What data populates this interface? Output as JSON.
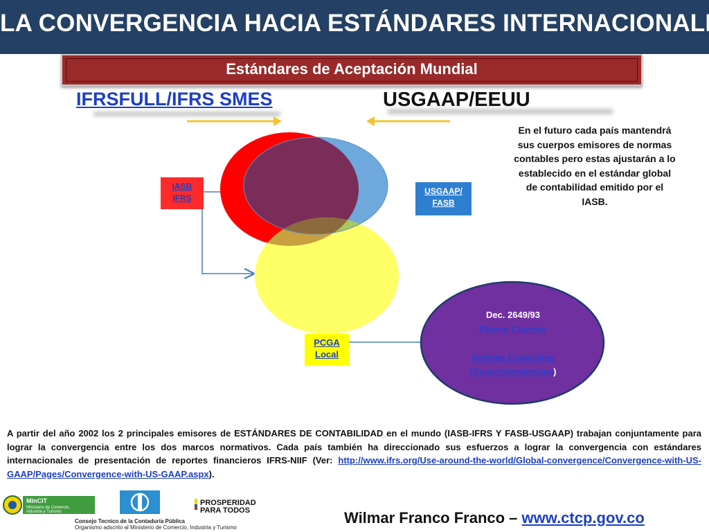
{
  "title": "LA CONVERGENCIA HACIA ESTÁNDARES INTERNACIONALES",
  "subtitle": "Estándares de Aceptación Mundial",
  "left_heading": "IFRSFULL/IFRS SMES",
  "right_heading": "USGAAP/EEUU",
  "iasb_label": {
    "line1": "IASB",
    "line2": "IFRS"
  },
  "fasb_label": {
    "line1": "USGAAP/",
    "line2": "FASB"
  },
  "pcga_label": {
    "line1": "PCGA",
    "line2": "Local"
  },
  "future_text": "En el futuro cada país mantendrá sus cuerpos emisores de normas contables pero estas ajustarán a lo establecido en el estándar global de contabilidad emitido por el IASB.",
  "decree": {
    "line1": "Dec. 2649/93",
    "line2": "Planes Cuentas",
    "line3": "Normas Especiales",
    "line4": "(Superintendencias",
    "line4_suffix": ")"
  },
  "body_text": "A partir del año 2002 los 2 principales emisores de ESTÁNDARES DE CONTABILIDAD en el mundo (IASB-IFRS Y FASB-USGAAP) trabajan conjuntamente para lograr la convergencia entre los dos marcos normativos. Cada país también ha direccionado sus esfuerzos a lograr la convergencia con estándares internacionales de presentación de reportes financieros IFRS-NIIF (Ver: ",
  "body_link": "http://www.ifrs.org/Use-around-the-world/Global-convergence/Convergence-with-US-GAAP/Pages/Convergence-with-US-GAAP.aspx",
  "body_end": ").",
  "footer": {
    "author": "Wilmar Franco Franco – ",
    "url": "www.ctcp.gov.co"
  },
  "logos": {
    "mincit_name": "MinCIT",
    "mincit_sub1": "Ministerio de Comercio,",
    "mincit_sub2": "Industria y Turismo",
    "prosperidad_line1": "PROSPERIDAD",
    "prosperidad_line2": "PARA TODOS",
    "council_line1": "Consejo Tecnico de la Contaduría Pública",
    "council_line2": "Organismo adscrito al Ministerio de Comercio, Industria y Turismo"
  },
  "colors": {
    "title_bg": "#244064",
    "subtitle_bg": "#9a2a2a",
    "ifrs_circle": "#ff0000",
    "usgaap_circle": "#6fa8dc",
    "pcga_circle": "#ffff66",
    "overlap": "#7b2d5a",
    "decree_ellipse": "#7030a0",
    "arrow_yellow": "#f4c430",
    "connector_blue": "#4a7fc1"
  },
  "icons": {
    "arrow_right": "arrow-right-icon",
    "arrow_left": "arrow-left-icon"
  }
}
